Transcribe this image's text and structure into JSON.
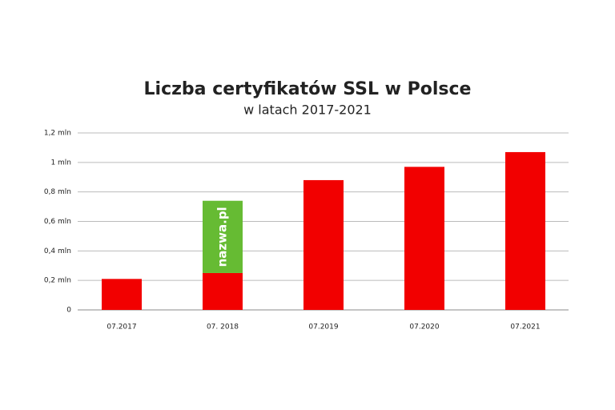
{
  "chart_data": {
    "type": "stacked-bar",
    "title": "Liczba certyfikatów SSL w Polsce",
    "subtitle": "w latach 2017-2021",
    "categories": [
      "07.2017",
      "07. 2018",
      "07.2019",
      "07.2020",
      "07.2021"
    ],
    "series": [
      {
        "color": "#f20000",
        "values": [
          0.21,
          0.25,
          0.88,
          0.97,
          1.07
        ]
      },
      {
        "name": "nazwa.pl",
        "color": "#66bb33",
        "values": [
          null,
          0.49,
          null,
          null,
          null
        ]
      }
    ],
    "ylim": [
      0,
      1.2
    ],
    "yticks": [
      0,
      {
        "value": 0.2,
        "label": "0,2 mln"
      },
      {
        "value": 0.4,
        "label": "0,4 mln"
      },
      {
        "value": 0.6,
        "label": "0,6 mln"
      },
      {
        "value": 0.8,
        "label": "0,8 mln"
      },
      {
        "value": 1,
        "label": "1 mln"
      },
      {
        "value": 1.2,
        "label": "1,2 mln"
      }
    ],
    "grid": true
  }
}
